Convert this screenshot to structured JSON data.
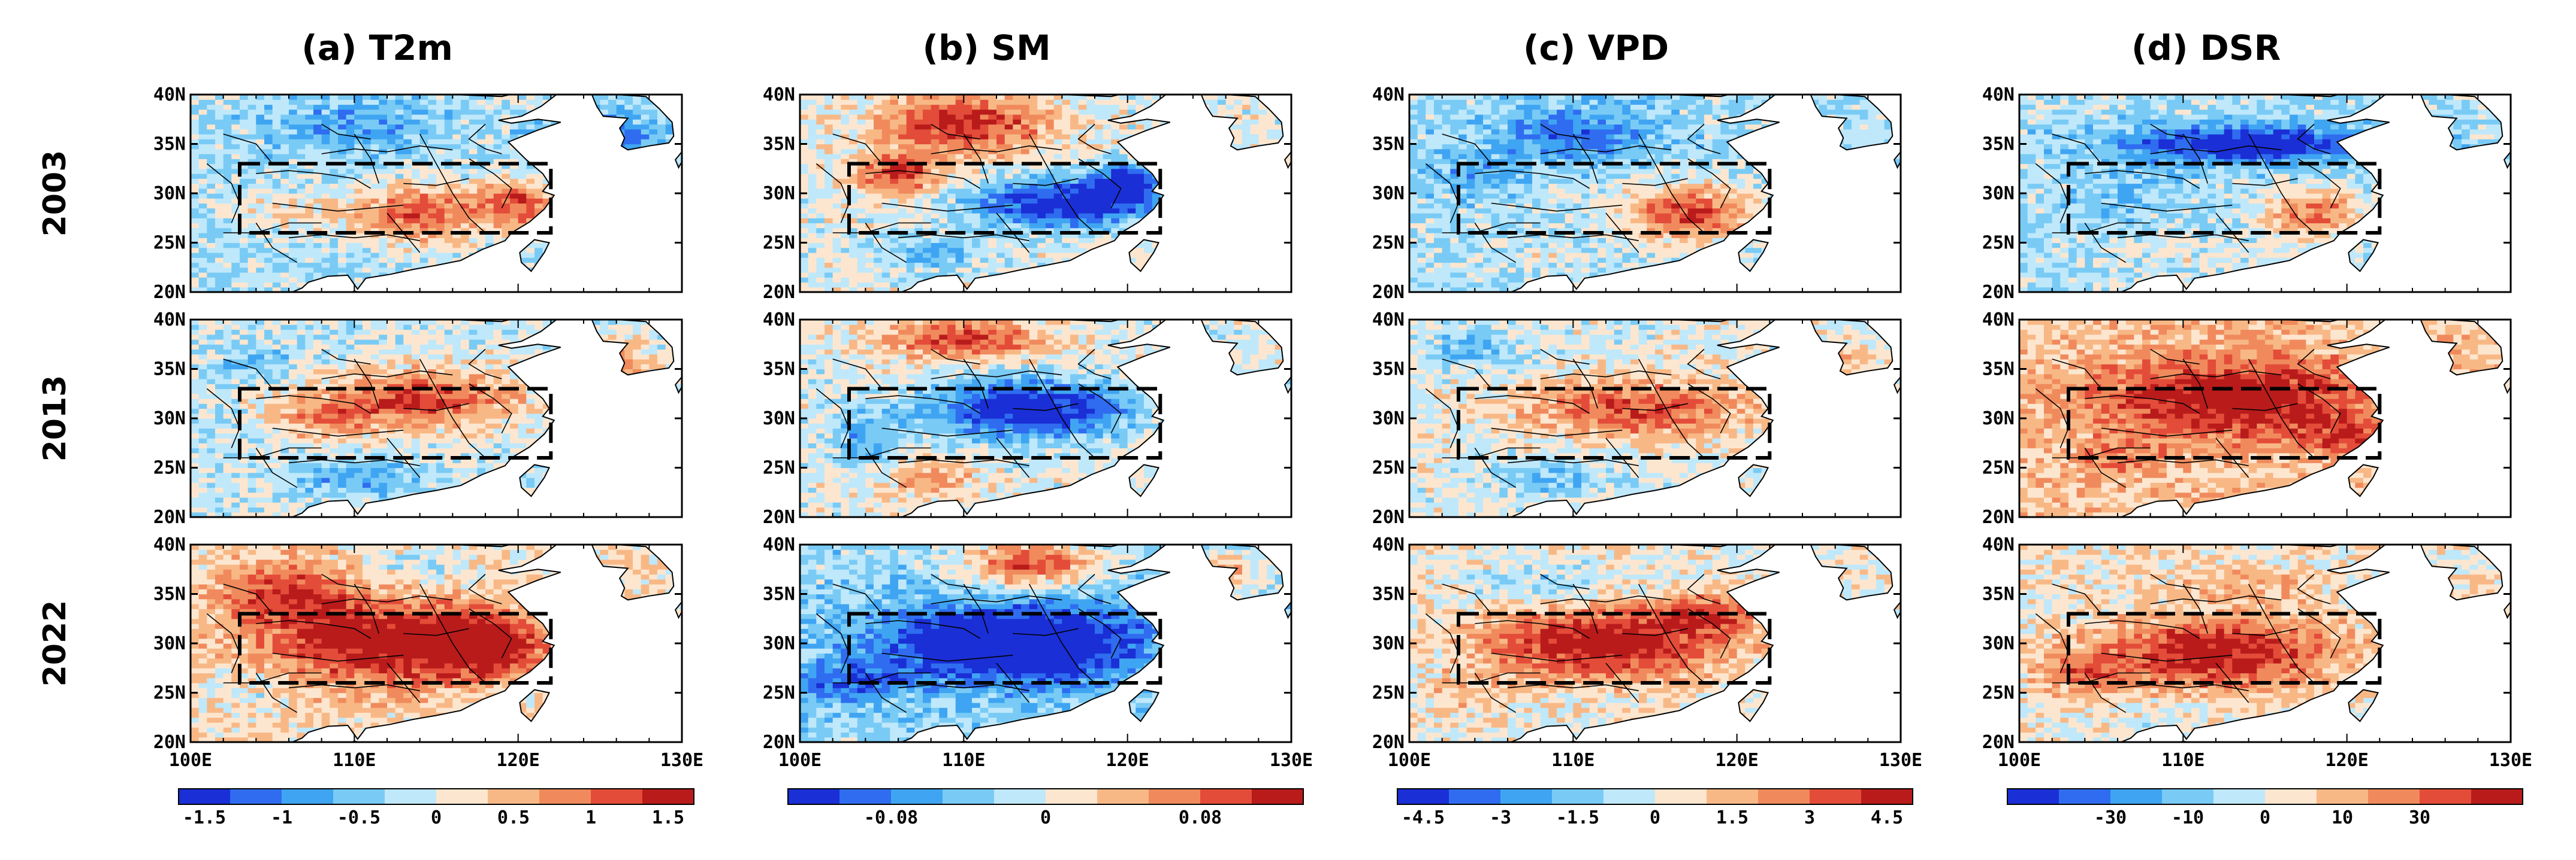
{
  "variables": [
    {
      "id": "t2m",
      "title": "(a) T2m",
      "colorbar": {
        "colors": [
          "#1a2fd6",
          "#2f6cf0",
          "#3fa5f2",
          "#79cbf5",
          "#bfe8fb",
          "#fde6cf",
          "#f8b886",
          "#f08a5c",
          "#e34c39",
          "#b91b1b"
        ],
        "labels": [
          "-1.5",
          "-1",
          "-0.5",
          "0",
          "0.5",
          "1",
          "1.5"
        ]
      }
    },
    {
      "id": "sm",
      "title": "(b) SM",
      "colorbar": {
        "colors": [
          "#1a2fd6",
          "#2f6cf0",
          "#3fa5f2",
          "#79cbf5",
          "#bfe8fb",
          "#fde6cf",
          "#f8b886",
          "#f08a5c",
          "#e34c39",
          "#b91b1b"
        ],
        "labels": [
          "-0.08",
          "0",
          "0.08"
        ]
      }
    },
    {
      "id": "vpd",
      "title": "(c) VPD",
      "colorbar": {
        "colors": [
          "#1a2fd6",
          "#2f6cf0",
          "#3fa5f2",
          "#79cbf5",
          "#bfe8fb",
          "#fde6cf",
          "#f8b886",
          "#f08a5c",
          "#e34c39",
          "#b91b1b"
        ],
        "labels": [
          "-4.5",
          "-3",
          "-1.5",
          "0",
          "1.5",
          "3",
          "4.5"
        ]
      }
    },
    {
      "id": "dsr",
      "title": "(d) DSR",
      "colorbar": {
        "colors": [
          "#1a2fd6",
          "#2f6cf0",
          "#3fa5f2",
          "#79cbf5",
          "#bfe8fb",
          "#fde6cf",
          "#f8b886",
          "#f08a5c",
          "#e34c39",
          "#b91b1b"
        ],
        "labels": [
          "-30",
          "-10",
          "0",
          "10",
          "30"
        ]
      }
    }
  ],
  "years": [
    "2003",
    "2013",
    "2022"
  ],
  "lat_labels": [
    "40N",
    "35N",
    "30N",
    "25N",
    "20N"
  ],
  "lon_labels": [
    "100E",
    "110E",
    "120E",
    "130E"
  ],
  "lat_range": [
    20,
    40
  ],
  "lon_range": [
    100,
    130
  ],
  "study_box": {
    "lon": [
      103,
      122
    ],
    "lat": [
      26,
      33
    ]
  },
  "palette": {
    "ocean": "#ffffff",
    "frame": "#000000"
  },
  "anomaly_fields": {
    "t2m": [
      {
        "year": "2003",
        "base": -0.3,
        "blobs": [
          [
            114,
            28,
            4,
            3,
            1.7
          ],
          [
            120,
            29,
            2.5,
            2.5,
            1.6
          ],
          [
            106,
            28,
            3,
            2,
            0.7
          ],
          [
            110,
            37,
            5,
            3,
            -0.7
          ],
          [
            125,
            35,
            3,
            3,
            -1.5
          ]
        ]
      },
      {
        "year": "2013",
        "base": -0.1,
        "blobs": [
          [
            114,
            32,
            6,
            3,
            1.6
          ],
          [
            108,
            30,
            3,
            2,
            1.0
          ],
          [
            104,
            36,
            3,
            2,
            -0.6
          ],
          [
            110,
            24,
            4,
            2,
            -0.9
          ],
          [
            126,
            36,
            2,
            2,
            1.2
          ]
        ]
      },
      {
        "year": "2022",
        "base": 0.3,
        "blobs": [
          [
            112,
            30,
            7,
            4,
            1.8
          ],
          [
            106,
            35,
            4,
            3,
            1.3
          ],
          [
            118,
            30,
            3,
            3,
            1.6
          ],
          [
            114,
            38,
            4,
            2,
            -0.5
          ],
          [
            104,
            25,
            3,
            2,
            -0.4
          ]
        ]
      }
    ],
    "sm": [
      {
        "year": "2003",
        "base": 0.0,
        "blobs": [
          [
            116,
            29,
            5,
            2.5,
            -0.11
          ],
          [
            120,
            31,
            2,
            2,
            -0.09
          ],
          [
            110,
            37,
            5,
            3,
            0.09
          ],
          [
            106,
            32,
            2.5,
            2,
            0.08
          ],
          [
            108,
            24,
            3,
            2,
            -0.04
          ]
        ]
      },
      {
        "year": "2013",
        "base": 0.0,
        "blobs": [
          [
            114,
            31,
            6,
            3,
            -0.11
          ],
          [
            110,
            38,
            5,
            2,
            0.08
          ],
          [
            104,
            28,
            2,
            3,
            -0.05
          ],
          [
            108,
            24,
            3,
            2,
            0.04
          ]
        ]
      },
      {
        "year": "2022",
        "base": -0.02,
        "blobs": [
          [
            113,
            30,
            8,
            4,
            -0.12
          ],
          [
            114,
            38,
            4,
            2.5,
            0.09
          ],
          [
            103,
            26,
            3,
            2,
            -0.05
          ],
          [
            126,
            37,
            2,
            2,
            0.06
          ]
        ]
      }
    ],
    "vpd": [
      {
        "year": "2003",
        "base": -0.8,
        "blobs": [
          [
            117,
            28,
            4,
            3,
            4.5
          ],
          [
            110,
            36,
            5,
            3,
            -2.5
          ],
          [
            104,
            32,
            3,
            2,
            -1.5
          ],
          [
            108,
            24,
            3,
            2,
            0.8
          ]
        ]
      },
      {
        "year": "2013",
        "base": 0.0,
        "blobs": [
          [
            114,
            31,
            7,
            3,
            3.5
          ],
          [
            104,
            37,
            3,
            2,
            -2.0
          ],
          [
            109,
            24,
            4,
            2,
            -1.5
          ],
          [
            126,
            36,
            2,
            2,
            1.5
          ]
        ]
      },
      {
        "year": "2022",
        "base": 0.3,
        "blobs": [
          [
            112,
            30,
            7,
            3.5,
            5.0
          ],
          [
            108,
            36,
            4,
            2,
            -1.5
          ],
          [
            118,
            33,
            3,
            2,
            3.0
          ],
          [
            104,
            25,
            3,
            2,
            1.0
          ]
        ]
      }
    ],
    "dsr": [
      {
        "year": "2003",
        "base": -5,
        "blobs": [
          [
            114,
            35,
            8,
            2,
            -32
          ],
          [
            118,
            28,
            3,
            2.5,
            25
          ],
          [
            106,
            30,
            3,
            3,
            -8
          ],
          [
            110,
            24,
            4,
            2,
            5
          ]
        ]
      },
      {
        "year": "2013",
        "base": 8,
        "blobs": [
          [
            113,
            32,
            8,
            4,
            30
          ],
          [
            106,
            26,
            3,
            2,
            10
          ],
          [
            120,
            28,
            3,
            2,
            15
          ]
        ]
      },
      {
        "year": "2022",
        "base": 3,
        "blobs": [
          [
            112,
            29,
            7,
            3.5,
            32
          ],
          [
            114,
            36,
            4,
            2,
            10
          ],
          [
            104,
            27,
            2.5,
            2,
            15
          ],
          [
            108,
            22,
            3,
            2,
            -5
          ]
        ]
      }
    ]
  }
}
